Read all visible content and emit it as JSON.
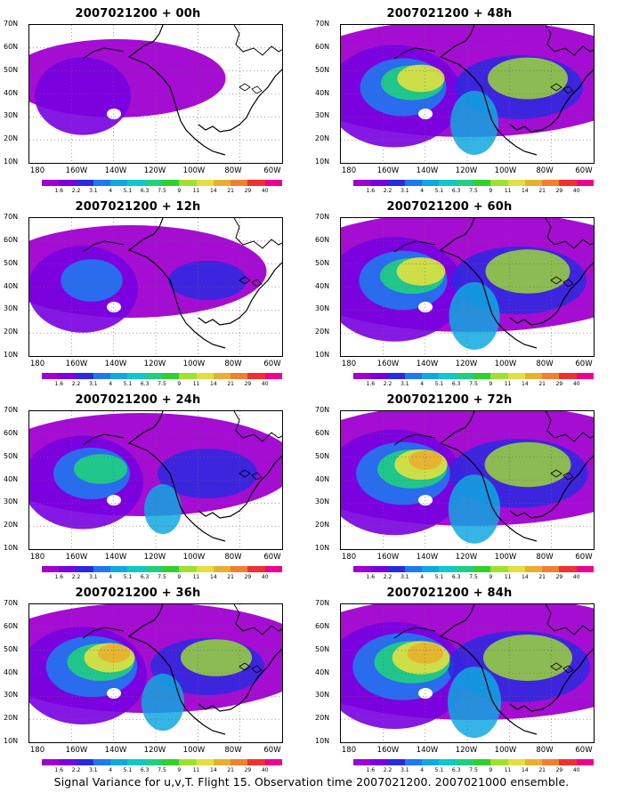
{
  "panels": [
    {
      "title": "2007021200 + 00h",
      "col": 0,
      "row": 0,
      "level": 0.25,
      "extent": 0.35
    },
    {
      "title": "2007021200 + 12h",
      "col": 0,
      "row": 1,
      "level": 0.45,
      "extent": 0.55
    },
    {
      "title": "2007021200 + 24h",
      "col": 0,
      "row": 2,
      "level": 0.6,
      "extent": 0.7
    },
    {
      "title": "2007021200 + 36h",
      "col": 0,
      "row": 3,
      "level": 0.75,
      "extent": 0.8
    },
    {
      "title": "2007021200 + 48h",
      "col": 1,
      "row": 0,
      "level": 0.7,
      "extent": 0.9
    },
    {
      "title": "2007021200 + 60h",
      "col": 1,
      "row": 1,
      "level": 0.72,
      "extent": 0.95
    },
    {
      "title": "2007021200 + 72h",
      "col": 1,
      "row": 2,
      "level": 0.78,
      "extent": 0.97
    },
    {
      "title": "2007021200 + 84h",
      "col": 1,
      "row": 3,
      "level": 0.85,
      "extent": 1.0
    }
  ],
  "lat_labels": [
    "70N",
    "60N",
    "50N",
    "40N",
    "30N",
    "20N",
    "10N"
  ],
  "lon_labels": [
    "180",
    "160W",
    "140W",
    "120W",
    "100W",
    "80W",
    "60W"
  ],
  "colorbar": {
    "labels": [
      "1.6",
      "2.2",
      "3.1",
      "4",
      "5.1",
      "6.3",
      "7.5",
      "9",
      "11",
      "14",
      "21",
      "29",
      "40"
    ],
    "colors": [
      "#a000d0",
      "#7800e0",
      "#2a2ae0",
      "#2078f0",
      "#10a8e0",
      "#10c8c8",
      "#20d080",
      "#30d030",
      "#a0e030",
      "#e0e040",
      "#e8b030",
      "#f08030",
      "#f03030",
      "#f00090"
    ]
  },
  "caption": "Signal Variance for u,v,T. Flight 15. Observation time 2007021200. 2007021000 ensemble."
}
